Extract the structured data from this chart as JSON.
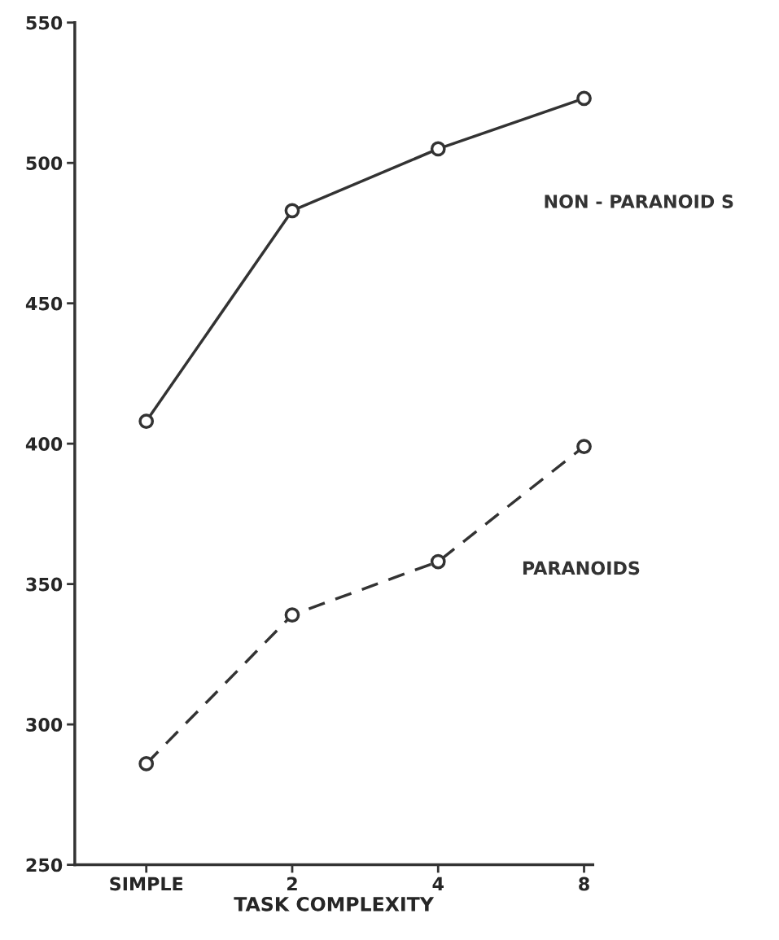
{
  "chart_data": {
    "type": "line",
    "xlabel": "TASK COMPLEXITY",
    "categories": [
      "SIMPLE",
      "2",
      "4",
      "8"
    ],
    "ylim": [
      250,
      550
    ],
    "yticks": [
      250,
      300,
      350,
      400,
      450,
      500,
      550
    ],
    "marker": "circle",
    "grid": false,
    "legend": false,
    "annotations": [
      "NON - PARANOID S",
      "PARANOIDS"
    ],
    "series": [
      {
        "color": "#333333",
        "line_style": "solid",
        "values": [
          408,
          483,
          505,
          523
        ]
      },
      {
        "color": "#333333",
        "line_style": "dashed",
        "values": [
          286,
          339,
          358,
          399
        ]
      }
    ]
  }
}
